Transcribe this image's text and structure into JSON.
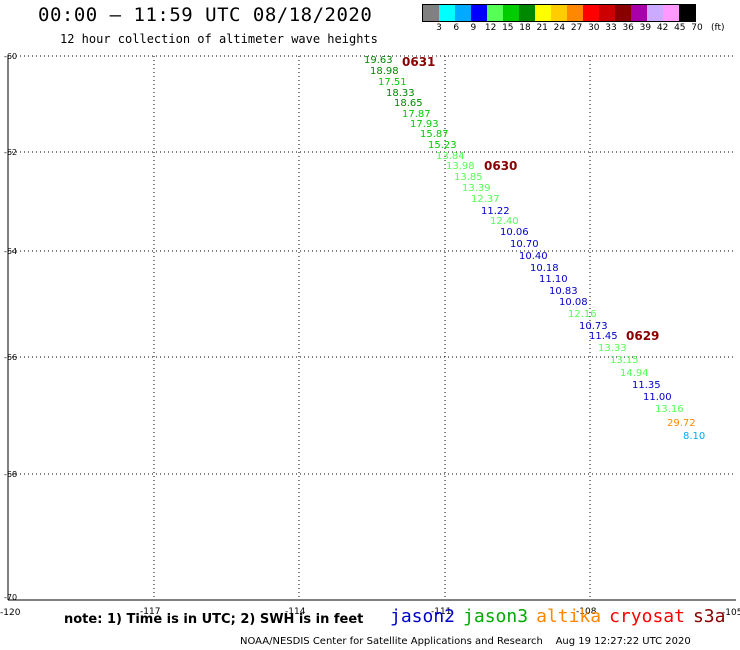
{
  "header": {
    "title": "00:00 — 11:59 UTC 08/18/2020",
    "subtitle": "12 hour collection of altimeter wave heights"
  },
  "color_scale": {
    "unit": "(ft)",
    "swatches": [
      "#808080",
      "#00ffff",
      "#00aaff",
      "#0000ff",
      "#55ff55",
      "#00cc00",
      "#008800",
      "#ffff00",
      "#ffcc00",
      "#ff8800",
      "#ff0000",
      "#cc0000",
      "#880000",
      "#aa00aa",
      "#ccaaff",
      "#ff99ff",
      "#000000"
    ],
    "ticks": [
      "3",
      "6",
      "9",
      "12",
      "15",
      "18",
      "21",
      "24",
      "27",
      "30",
      "33",
      "36",
      "39",
      "42",
      "45",
      "70"
    ]
  },
  "axes": {
    "lat_labels": [
      "-60",
      "-62",
      "-64",
      "-66",
      "-68",
      "-70"
    ],
    "lon_labels": [
      "-120",
      "-117",
      "-114",
      "-111",
      "-108",
      "-105"
    ]
  },
  "passes": [
    {
      "label": "0631",
      "color": "#880000"
    },
    {
      "label": "0630",
      "color": "#880000"
    },
    {
      "label": "0629",
      "color": "#880000"
    }
  ],
  "observations": [
    {
      "v": "19.63",
      "c": "#008800"
    },
    {
      "v": "18.98",
      "c": "#008800"
    },
    {
      "v": "17.51",
      "c": "#00cc00"
    },
    {
      "v": "18.33",
      "c": "#008800"
    },
    {
      "v": "18.65",
      "c": "#008800"
    },
    {
      "v": "17.87",
      "c": "#00cc00"
    },
    {
      "v": "17.93",
      "c": "#00cc00"
    },
    {
      "v": "15.87",
      "c": "#00cc00"
    },
    {
      "v": "15.23",
      "c": "#00cc00"
    },
    {
      "v": "13.84",
      "c": "#55ff55"
    },
    {
      "v": "13.98",
      "c": "#55ff55"
    },
    {
      "v": "13.85",
      "c": "#55ff55"
    },
    {
      "v": "13.39",
      "c": "#55ff55"
    },
    {
      "v": "12.37",
      "c": "#55ff55"
    },
    {
      "v": "11.22",
      "c": "#0000cc"
    },
    {
      "v": "12.40",
      "c": "#55ff55"
    },
    {
      "v": "10.06",
      "c": "#0000cc"
    },
    {
      "v": "10.70",
      "c": "#0000cc"
    },
    {
      "v": "10.40",
      "c": "#0000cc"
    },
    {
      "v": "10.18",
      "c": "#0000cc"
    },
    {
      "v": "11.10",
      "c": "#0000cc"
    },
    {
      "v": "10.83",
      "c": "#0000cc"
    },
    {
      "v": "10.08",
      "c": "#0000cc"
    },
    {
      "v": "12.16",
      "c": "#55ff55"
    },
    {
      "v": "10.73",
      "c": "#0000cc"
    },
    {
      "v": "11.45",
      "c": "#0000cc"
    },
    {
      "v": "13.33",
      "c": "#55ff55"
    },
    {
      "v": "13.15",
      "c": "#55ff55"
    },
    {
      "v": "14.94",
      "c": "#55ff55"
    },
    {
      "v": "11.35",
      "c": "#0000cc"
    },
    {
      "v": "11.00",
      "c": "#0000cc"
    },
    {
      "v": "13.16",
      "c": "#55ff55"
    },
    {
      "v": "29.72",
      "c": "#ff8800"
    },
    {
      "v": "8.10",
      "c": "#00aaff"
    }
  ],
  "note": "note: 1) Time is in UTC; 2) SWH is in feet",
  "legend": [
    {
      "label": "jason2",
      "color": "#0000cc"
    },
    {
      "label": "jason3",
      "color": "#00aa00"
    },
    {
      "label": "altika",
      "color": "#ff8800"
    },
    {
      "label": "cryosat",
      "color": "#ff0000"
    },
    {
      "label": "s3a",
      "color": "#880000"
    }
  ],
  "footer": "NOAA/NESDIS Center for Satellite Applications and Research    Aug 19 12:27:22 UTC 2020"
}
